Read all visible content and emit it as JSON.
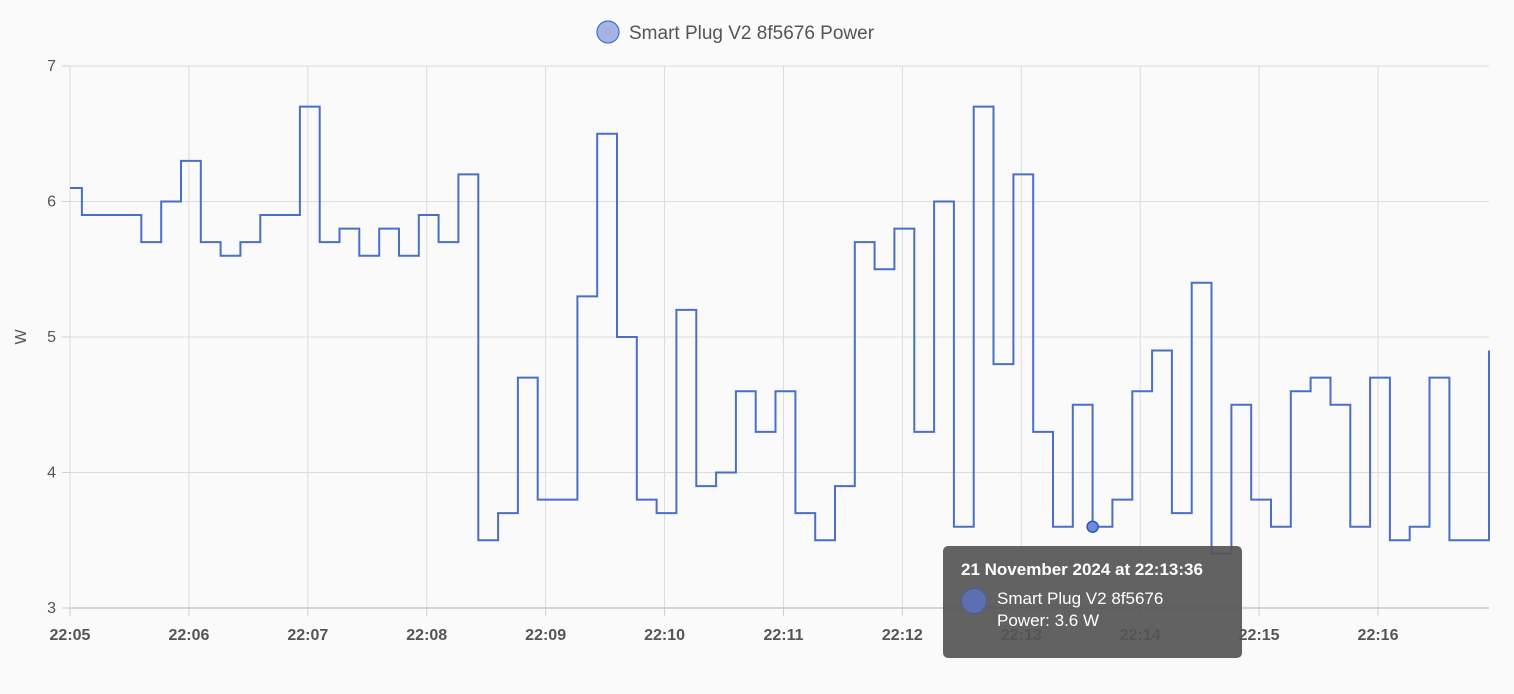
{
  "chart_data": {
    "type": "line",
    "step": "after",
    "title": "",
    "xlabel": "",
    "ylabel": "W",
    "ylim": [
      3,
      7
    ],
    "yticks": [
      3,
      4,
      5,
      6,
      7
    ],
    "xlim": [
      "22:05:00",
      "22:16:56"
    ],
    "xticks": [
      "22:05",
      "22:06",
      "22:07",
      "22:08",
      "22:09",
      "22:10",
      "22:11",
      "22:12",
      "22:13",
      "22:14",
      "22:15",
      "22:16"
    ],
    "grid": true,
    "legend_position": "top-center",
    "series": [
      {
        "name": "Smart Plug V2 8f5676 Power",
        "color": "#4a6fc7",
        "x": [
          "22:05:00",
          "22:05:06",
          "22:05:36",
          "22:05:46",
          "22:05:56",
          "22:06:06",
          "22:06:16",
          "22:06:26",
          "22:06:36",
          "22:06:56",
          "22:07:06",
          "22:07:16",
          "22:07:26",
          "22:07:36",
          "22:07:46",
          "22:07:56",
          "22:08:06",
          "22:08:16",
          "22:08:26",
          "22:08:36",
          "22:08:46",
          "22:08:56",
          "22:09:06",
          "22:09:16",
          "22:09:26",
          "22:09:36",
          "22:09:46",
          "22:09:56",
          "22:10:06",
          "22:10:16",
          "22:10:26",
          "22:10:36",
          "22:10:46",
          "22:10:56",
          "22:11:06",
          "22:11:16",
          "22:11:26",
          "22:11:36",
          "22:11:46",
          "22:11:56",
          "22:12:06",
          "22:12:16",
          "22:12:26",
          "22:12:36",
          "22:12:46",
          "22:12:56",
          "22:13:06",
          "22:13:16",
          "22:13:26",
          "22:13:36",
          "22:13:46",
          "22:13:56",
          "22:14:06",
          "22:14:16",
          "22:14:26",
          "22:14:36",
          "22:14:46",
          "22:14:56",
          "22:15:06",
          "22:15:16",
          "22:15:26",
          "22:15:36",
          "22:15:46",
          "22:15:56",
          "22:16:06",
          "22:16:16",
          "22:16:26",
          "22:16:36",
          "22:16:56"
        ],
        "y": [
          6.1,
          5.9,
          5.7,
          6.0,
          6.3,
          5.7,
          5.6,
          5.7,
          5.9,
          6.7,
          5.7,
          5.8,
          5.6,
          5.8,
          5.6,
          5.9,
          5.7,
          6.2,
          3.5,
          3.7,
          4.7,
          3.8,
          3.8,
          5.3,
          6.5,
          5.0,
          3.8,
          3.7,
          5.2,
          3.9,
          4.0,
          4.6,
          4.3,
          4.6,
          3.7,
          3.5,
          3.9,
          5.7,
          5.5,
          5.8,
          4.3,
          6.0,
          3.6,
          6.7,
          4.8,
          6.2,
          4.3,
          3.6,
          4.5,
          3.6,
          3.8,
          4.6,
          4.9,
          3.7,
          5.4,
          3.4,
          4.5,
          3.8,
          3.6,
          4.6,
          4.7,
          4.5,
          3.6,
          4.7,
          3.5,
          3.6,
          4.7,
          3.5,
          4.9
        ]
      }
    ]
  },
  "tooltip": {
    "title": "21 November 2024 at 22:13:36",
    "series_name": "Smart Plug V2 8f5676",
    "value_text": "Power: 3.6 W",
    "point_x": "22:13:36",
    "point_y": 3.6
  }
}
